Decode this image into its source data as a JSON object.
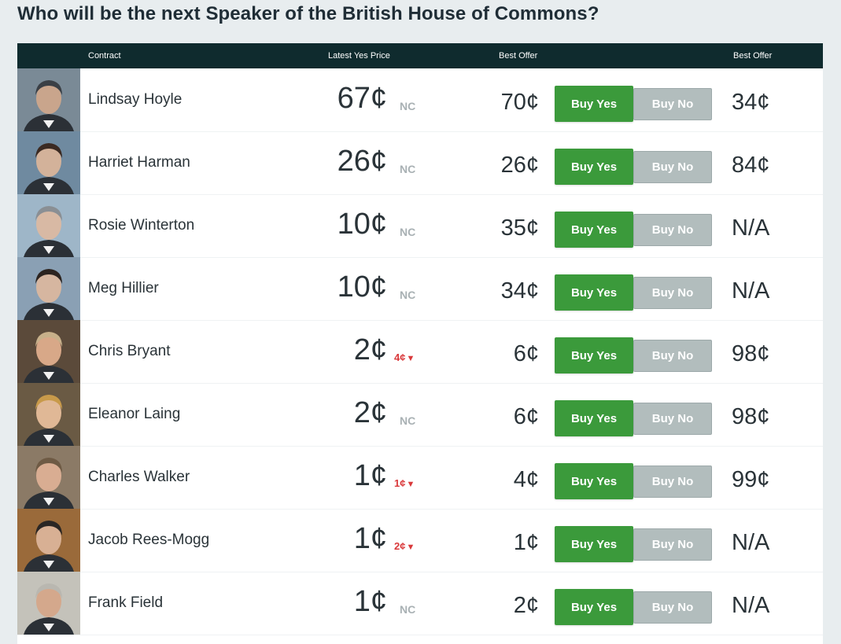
{
  "title": "Who will be the next Speaker of the British House of Commons?",
  "header": {
    "contract": "Contract",
    "latest_yes_price": "Latest Yes Price",
    "best_offer_yes": "Best Offer",
    "best_offer_no": "Best Offer"
  },
  "buttons": {
    "buy_yes": "Buy Yes",
    "buy_no": "Buy No"
  },
  "colors": {
    "header_bg": "#0f2b2e",
    "buy_yes": "#3b9a3b",
    "buy_no": "#b2bdbd",
    "price_down": "#d9393b",
    "no_change": "#a9b1b4"
  },
  "rows": [
    {
      "name": "Lindsay Hoyle",
      "price": "67¢",
      "change": "NC",
      "direction": "none",
      "best_offer_yes": "70¢",
      "best_offer_no": "34¢"
    },
    {
      "name": "Harriet Harman",
      "price": "26¢",
      "change": "NC",
      "direction": "none",
      "best_offer_yes": "26¢",
      "best_offer_no": "84¢"
    },
    {
      "name": "Rosie Winterton",
      "price": "10¢",
      "change": "NC",
      "direction": "none",
      "best_offer_yes": "35¢",
      "best_offer_no": "N/A"
    },
    {
      "name": "Meg Hillier",
      "price": "10¢",
      "change": "NC",
      "direction": "none",
      "best_offer_yes": "34¢",
      "best_offer_no": "N/A"
    },
    {
      "name": "Chris Bryant",
      "price": "2¢",
      "change": "4¢",
      "direction": "down",
      "best_offer_yes": "6¢",
      "best_offer_no": "98¢"
    },
    {
      "name": "Eleanor Laing",
      "price": "2¢",
      "change": "NC",
      "direction": "none",
      "best_offer_yes": "6¢",
      "best_offer_no": "98¢"
    },
    {
      "name": "Charles Walker",
      "price": "1¢",
      "change": "1¢",
      "direction": "down",
      "best_offer_yes": "4¢",
      "best_offer_no": "99¢"
    },
    {
      "name": "Jacob Rees-Mogg",
      "price": "1¢",
      "change": "2¢",
      "direction": "down",
      "best_offer_yes": "1¢",
      "best_offer_no": "N/A"
    },
    {
      "name": "Frank Field",
      "price": "1¢",
      "change": "NC",
      "direction": "none",
      "best_offer_yes": "2¢",
      "best_offer_no": "N/A"
    }
  ]
}
